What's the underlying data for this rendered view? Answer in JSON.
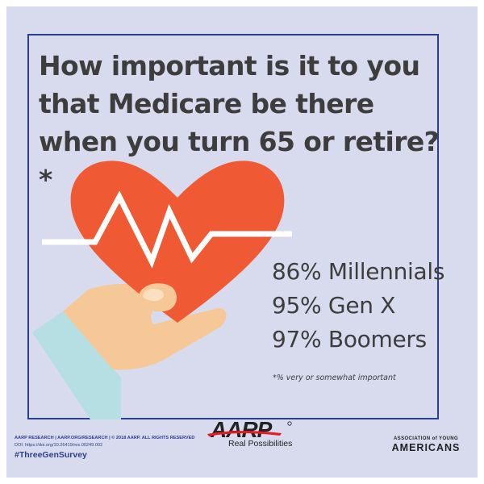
{
  "question": "How important is it to you that Medicare be there when you turn 65 or retire?*",
  "stats": [
    {
      "percent": "86%",
      "group": "Millennials",
      "text": "86% Millennials"
    },
    {
      "percent": "95%",
      "group": "Gen X",
      "text": "95% Gen X"
    },
    {
      "percent": "97%",
      "group": "Boomers",
      "text": "97% Boomers"
    }
  ],
  "footnote": "*% very or somewhat important",
  "footer": {
    "credits": "AARP RESEARCH  |  AARP.ORG/RESEARCH  |  © 2018 AARP. ALL RIGHTS RESERVED",
    "doi": "DOI:  https://doi.org/10.26419/res.00249.002",
    "hashtag": "#ThreeGenSurvey",
    "aarp_logo_text": "AARP",
    "aarp_tagline": "Real Possibilities",
    "aya_line1": "ASSOCIATION of YOUNG",
    "aya_line2": "AMERICANS"
  },
  "colors": {
    "background": "#d8dbee",
    "frame": "#2b3f8f",
    "heart": "#ef5a34",
    "text": "#3d3d3d",
    "hand": "#f6c898",
    "sleeve": "#b5dfe2",
    "aarp_red": "#e31b23"
  },
  "icons": [
    "heart-icon",
    "heartbeat-line-icon",
    "hand-icon",
    "sleeve-icon"
  ]
}
